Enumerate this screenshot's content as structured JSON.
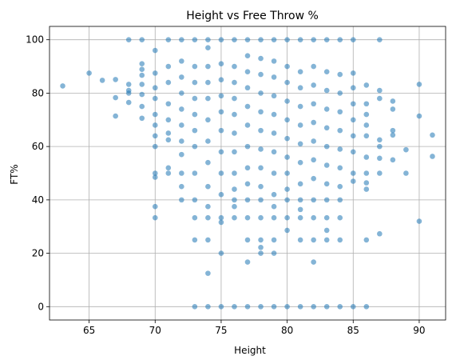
{
  "chart_data": {
    "type": "scatter",
    "title": "Height vs Free Throw %",
    "xlabel": "Height",
    "ylabel": "FT%",
    "xlim": [
      62,
      92
    ],
    "ylim": [
      -5,
      105
    ],
    "xticks": [
      65,
      70,
      75,
      80,
      85,
      90
    ],
    "yticks": [
      0,
      20,
      40,
      60,
      80,
      100
    ],
    "grid": true,
    "point_color": "#1f77b4",
    "point_alpha": 0.55,
    "series": [
      {
        "points": [
          [
            63,
            82.7
          ],
          [
            65,
            87.5
          ],
          [
            66,
            84.8
          ],
          [
            67,
            85.1
          ],
          [
            67,
            78.3
          ],
          [
            67,
            71.4
          ],
          [
            68,
            100
          ],
          [
            68,
            83.3
          ],
          [
            68,
            80.0
          ],
          [
            68,
            76.5
          ],
          [
            68,
            81.0
          ],
          [
            69,
            100
          ],
          [
            69,
            91.0
          ],
          [
            69,
            88.9
          ],
          [
            69,
            86.7
          ],
          [
            69,
            83.3
          ],
          [
            69,
            79.5
          ],
          [
            69,
            75.0
          ],
          [
            69,
            70.6
          ],
          [
            70,
            96.0
          ],
          [
            70,
            87.5
          ],
          [
            70,
            82.0
          ],
          [
            70,
            78.0
          ],
          [
            70,
            72.0
          ],
          [
            70,
            68.0
          ],
          [
            70,
            64.0
          ],
          [
            70,
            60.0
          ],
          [
            70,
            50.0
          ],
          [
            70,
            48.5
          ],
          [
            70,
            37.5
          ],
          [
            70,
            33.3
          ],
          [
            71,
            100
          ],
          [
            71,
            90.0
          ],
          [
            71,
            84.0
          ],
          [
            71,
            76.0
          ],
          [
            71,
            70.0
          ],
          [
            71,
            65.0
          ],
          [
            71,
            62.5
          ],
          [
            71,
            52.0
          ],
          [
            71,
            50.0
          ],
          [
            72,
            100
          ],
          [
            72,
            92.0
          ],
          [
            72,
            86.0
          ],
          [
            72,
            80.0
          ],
          [
            72,
            74.0
          ],
          [
            72,
            68.0
          ],
          [
            72,
            62.0
          ],
          [
            72,
            57.0
          ],
          [
            72,
            50.0
          ],
          [
            72,
            45.0
          ],
          [
            72,
            40.0
          ],
          [
            73,
            100
          ],
          [
            73,
            90.0
          ],
          [
            73,
            84.0
          ],
          [
            73,
            78.0
          ],
          [
            73,
            72.0
          ],
          [
            73,
            66.0
          ],
          [
            73,
            60.0
          ],
          [
            73,
            50.0
          ],
          [
            73,
            40.0
          ],
          [
            73,
            33.3
          ],
          [
            73,
            25.0
          ],
          [
            73,
            0
          ],
          [
            74,
            100
          ],
          [
            74,
            97.0
          ],
          [
            74,
            90.0
          ],
          [
            74,
            84.0
          ],
          [
            74,
            78.0
          ],
          [
            74,
            70.0
          ],
          [
            74,
            62.0
          ],
          [
            74,
            54.0
          ],
          [
            74,
            45.0
          ],
          [
            74,
            37.5
          ],
          [
            74,
            33.3
          ],
          [
            74,
            25.0
          ],
          [
            74,
            12.5
          ],
          [
            74,
            0
          ],
          [
            75,
            100
          ],
          [
            75,
            91.0
          ],
          [
            75,
            85.0
          ],
          [
            75,
            79.0
          ],
          [
            75,
            73.0
          ],
          [
            75,
            66.0
          ],
          [
            75,
            58.0
          ],
          [
            75,
            50.0
          ],
          [
            75,
            42.0
          ],
          [
            75,
            33.3
          ],
          [
            75,
            31.6
          ],
          [
            75,
            20.0
          ],
          [
            75,
            0
          ],
          [
            76,
            100
          ],
          [
            76,
            90.0
          ],
          [
            76,
            84.0
          ],
          [
            76,
            78.0
          ],
          [
            76,
            72.0
          ],
          [
            76,
            65.0
          ],
          [
            76,
            58.0
          ],
          [
            76,
            50.0
          ],
          [
            76,
            44.0
          ],
          [
            76,
            40.0
          ],
          [
            76,
            37.5
          ],
          [
            76,
            33.3
          ],
          [
            76,
            0
          ],
          [
            77,
            100
          ],
          [
            77,
            94.0
          ],
          [
            77,
            88.0
          ],
          [
            77,
            82.0
          ],
          [
            77,
            75.0
          ],
          [
            77,
            68.0
          ],
          [
            77,
            60.0
          ],
          [
            77,
            52.0
          ],
          [
            77,
            46.0
          ],
          [
            77,
            40.0
          ],
          [
            77,
            33.3
          ],
          [
            77,
            25.0
          ],
          [
            77,
            16.7
          ],
          [
            77,
            0
          ],
          [
            78,
            100
          ],
          [
            78,
            93.0
          ],
          [
            78,
            87.0
          ],
          [
            78,
            80.0
          ],
          [
            78,
            73.0
          ],
          [
            78,
            66.0
          ],
          [
            78,
            59.0
          ],
          [
            78,
            52.0
          ],
          [
            78,
            45.0
          ],
          [
            78,
            40.0
          ],
          [
            78,
            33.3
          ],
          [
            78,
            25.0
          ],
          [
            78,
            22.2
          ],
          [
            78,
            20.0
          ],
          [
            78,
            0
          ],
          [
            79,
            100
          ],
          [
            79,
            92.0
          ],
          [
            79,
            86.0
          ],
          [
            79,
            79.0
          ],
          [
            79,
            72.0
          ],
          [
            79,
            65.0
          ],
          [
            79,
            58.0
          ],
          [
            79,
            50.0
          ],
          [
            79,
            42.0
          ],
          [
            79,
            37.5
          ],
          [
            79,
            33.3
          ],
          [
            79,
            25.0
          ],
          [
            79,
            20.0
          ],
          [
            79,
            0
          ],
          [
            80,
            100
          ],
          [
            80,
            90.0
          ],
          [
            80,
            84.0
          ],
          [
            80,
            77.0
          ],
          [
            80,
            70.0
          ],
          [
            80,
            63.0
          ],
          [
            80,
            56.0
          ],
          [
            80,
            50.0
          ],
          [
            80,
            44.0
          ],
          [
            80,
            40.0
          ],
          [
            80,
            33.3
          ],
          [
            80,
            28.6
          ],
          [
            80,
            0
          ],
          [
            81,
            100
          ],
          [
            81,
            88.0
          ],
          [
            81,
            82.0
          ],
          [
            81,
            75.0
          ],
          [
            81,
            68.0
          ],
          [
            81,
            61.0
          ],
          [
            81,
            54.0
          ],
          [
            81,
            46.0
          ],
          [
            81,
            40.0
          ],
          [
            81,
            36.4
          ],
          [
            81,
            33.3
          ],
          [
            81,
            25.0
          ],
          [
            81,
            0
          ],
          [
            82,
            100
          ],
          [
            82,
            90.0
          ],
          [
            82,
            83.0
          ],
          [
            82,
            76.0
          ],
          [
            82,
            69.0
          ],
          [
            82,
            62.0
          ],
          [
            82,
            55.0
          ],
          [
            82,
            48.0
          ],
          [
            82,
            40.0
          ],
          [
            82,
            33.3
          ],
          [
            82,
            25.0
          ],
          [
            82,
            16.7
          ],
          [
            82,
            0
          ],
          [
            83,
            100
          ],
          [
            83,
            88.0
          ],
          [
            83,
            81.0
          ],
          [
            83,
            74.0
          ],
          [
            83,
            67.0
          ],
          [
            83,
            60.0
          ],
          [
            83,
            53.0
          ],
          [
            83,
            46.0
          ],
          [
            83,
            40.0
          ],
          [
            83,
            33.3
          ],
          [
            83,
            28.6
          ],
          [
            83,
            25.0
          ],
          [
            83,
            0
          ],
          [
            84,
            100
          ],
          [
            84,
            87.0
          ],
          [
            84,
            80.0
          ],
          [
            84,
            73.0
          ],
          [
            84,
            66.0
          ],
          [
            84,
            59.0
          ],
          [
            84,
            52.0
          ],
          [
            84,
            45.0
          ],
          [
            84,
            40.0
          ],
          [
            84,
            33.3
          ],
          [
            84,
            25.0
          ],
          [
            84,
            0
          ],
          [
            85,
            100
          ],
          [
            85,
            87.5
          ],
          [
            85,
            82.0
          ],
          [
            85,
            76.0
          ],
          [
            85,
            70.0
          ],
          [
            85,
            64.0
          ],
          [
            85,
            58.0
          ],
          [
            85,
            50.0
          ],
          [
            85,
            47.0
          ],
          [
            85,
            0
          ],
          [
            86,
            83.0
          ],
          [
            86,
            76.0
          ],
          [
            86,
            72.0
          ],
          [
            86,
            68.0
          ],
          [
            86,
            64.0
          ],
          [
            86,
            56.0
          ],
          [
            86,
            50.0
          ],
          [
            86,
            46.4
          ],
          [
            86,
            44.0
          ],
          [
            86,
            25.0
          ],
          [
            86,
            0
          ],
          [
            87,
            100
          ],
          [
            87,
            81.0
          ],
          [
            87,
            78.0
          ],
          [
            87,
            62.5
          ],
          [
            87,
            60.0
          ],
          [
            87,
            55.6
          ],
          [
            87,
            50.0
          ],
          [
            87,
            27.3
          ],
          [
            88,
            77.0
          ],
          [
            88,
            74.0
          ],
          [
            88,
            66.0
          ],
          [
            88,
            64.3
          ],
          [
            88,
            55.0
          ],
          [
            89,
            58.8
          ],
          [
            89,
            50.0
          ],
          [
            90,
            83.3
          ],
          [
            90,
            71.4
          ],
          [
            90,
            32.0
          ],
          [
            91,
            64.3
          ],
          [
            91,
            56.3
          ]
        ]
      }
    ]
  }
}
